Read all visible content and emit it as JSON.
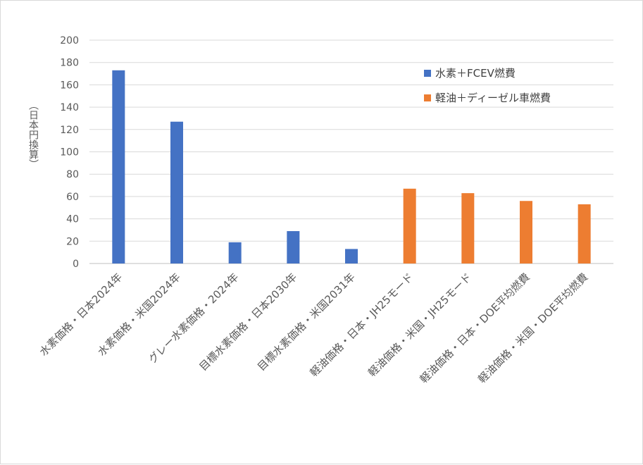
{
  "chart_data": {
    "type": "bar",
    "ylabel": "（日本円換算）",
    "ylim": [
      0,
      200
    ],
    "yticks": [
      0,
      20,
      40,
      60,
      80,
      100,
      120,
      140,
      160,
      180,
      200
    ],
    "grid": true,
    "legend_position": "top-right",
    "categories": [
      "水素価格・日本2024年",
      "水素価格・米国2024年",
      "グレー水素価格・2024年",
      "目標水素価格・日本2030年",
      "目標水素価格・米国2031年",
      "軽油価格・日本・JH25モード",
      "軽油価格・米国・JH25モード",
      "軽油価格・日本・DOE平均燃費",
      "軽油価格・米国・DOE平均燃費"
    ],
    "series": [
      {
        "name": "水素＋FCEV燃費",
        "color": "#4472c4",
        "values": [
          173,
          127,
          19,
          29,
          13,
          null,
          null,
          null,
          null
        ]
      },
      {
        "name": "軽油＋ディーゼル車燃費",
        "color": "#ed7d31",
        "values": [
          null,
          null,
          null,
          null,
          null,
          67,
          63,
          56,
          53
        ]
      }
    ]
  }
}
